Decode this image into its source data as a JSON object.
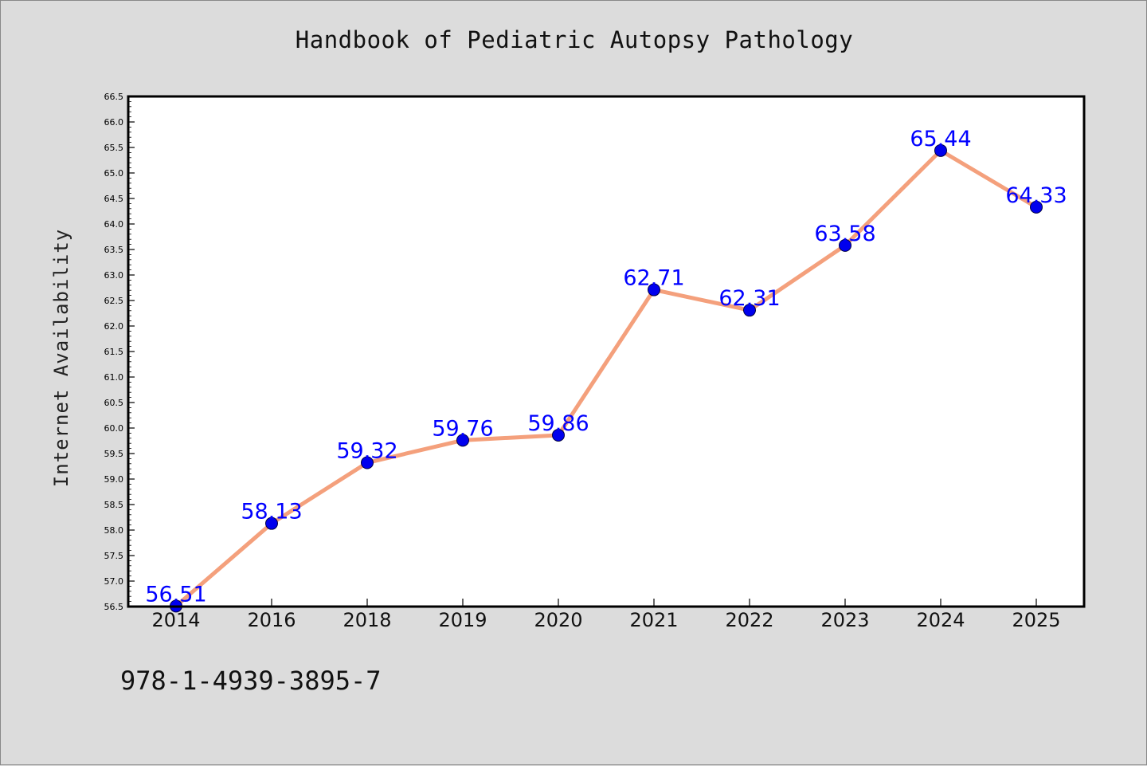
{
  "chart_data": {
    "type": "line",
    "title": "Handbook of Pediatric Autopsy Pathology",
    "xlabel": "",
    "ylabel": "Internet Availability",
    "categories": [
      "2014",
      "2016",
      "2018",
      "2019",
      "2020",
      "2021",
      "2022",
      "2023",
      "2024",
      "2025"
    ],
    "values": [
      56.51,
      58.13,
      59.32,
      59.76,
      59.86,
      62.71,
      62.31,
      63.58,
      65.44,
      64.33
    ],
    "data_labels": [
      "56.51",
      "58.13",
      "59.32",
      "59.76",
      "59.86",
      "62.71",
      "62.31",
      "63.58",
      "65.44",
      "64.33"
    ],
    "ylim": [
      56.5,
      66.5
    ],
    "y_ticks": [
      "56.5",
      "57.0",
      "57.5",
      "58.0",
      "58.5",
      "59.0",
      "59.5",
      "60.0",
      "60.5",
      "61.0",
      "61.5",
      "62.0",
      "62.5",
      "63.0",
      "63.5",
      "64.0",
      "64.5",
      "65.0",
      "65.5",
      "66.0",
      "66.5"
    ],
    "grid": false,
    "line_color": "#f4a07c",
    "marker_color": "#0000ee",
    "label_color": "#0000ff"
  },
  "footer": {
    "isbn": "978-1-4939-3895-7"
  }
}
